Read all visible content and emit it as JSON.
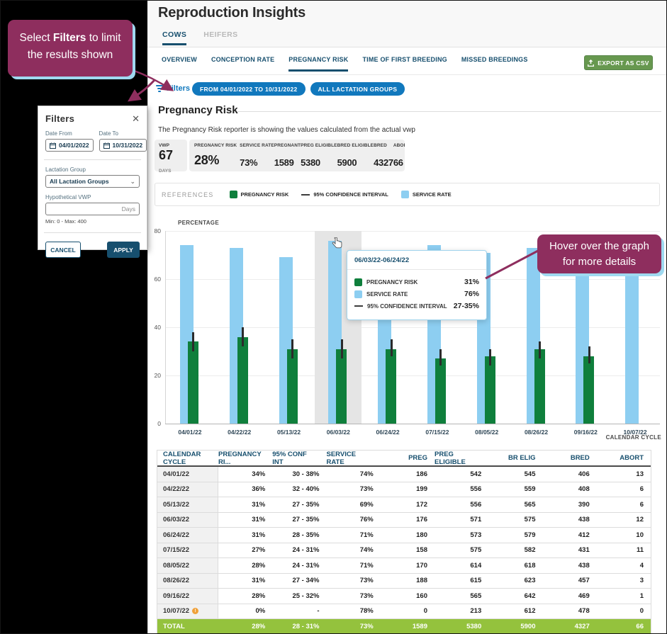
{
  "header": {
    "title": "Reproduction Insights",
    "tabs": [
      {
        "label": "COWS",
        "active": true
      },
      {
        "label": "HEIFERS",
        "active": false
      }
    ]
  },
  "subnav": {
    "tabs": [
      {
        "label": "OVERVIEW",
        "active": false
      },
      {
        "label": "CONCEPTION RATE",
        "active": false
      },
      {
        "label": "PREGNANCY RISK",
        "active": true
      },
      {
        "label": "TIME OF FIRST BREEDING",
        "active": false
      },
      {
        "label": "MISSED BREEDINGS",
        "active": false
      }
    ],
    "export_label": "EXPORT AS CSV"
  },
  "filters_bar": {
    "label": "Filters",
    "chips": [
      "FROM 04/01/2022 TO 10/31/2022",
      "ALL LACTATION GROUPS"
    ]
  },
  "section": {
    "title": "Pregnancy Risk",
    "subtitle": "The Pregnancy Risk reporter is showing the values calculated from the actual vwp"
  },
  "stats": {
    "vwp": {
      "label": "VWP",
      "value": "67",
      "unit": "DAYS"
    },
    "items": [
      {
        "label": "PREGNANCY RISK",
        "value": "28%",
        "big": true,
        "divider_after": true
      },
      {
        "label": "SERVICE RATE",
        "value": "73%"
      },
      {
        "label": "PREGNANT",
        "value": "1589"
      },
      {
        "label": "PREG ELIGIBLE",
        "value": "5380"
      },
      {
        "label": "BRED ELIGIBLE",
        "value": "5900"
      },
      {
        "label": "BRED",
        "value": "4327"
      },
      {
        "label": "ABORT",
        "value": "66"
      }
    ]
  },
  "references": {
    "label": "REFERENCES",
    "items": [
      {
        "swatch": "square",
        "color": "#0f7f3c",
        "label": "PREGNANCY RISK"
      },
      {
        "swatch": "line",
        "color": "#3c3c3c",
        "label": "95% CONFIDENCE INTERVAL"
      },
      {
        "swatch": "square",
        "color": "#8dcef1",
        "label": "SERVICE RATE"
      }
    ]
  },
  "chart_data": {
    "type": "bar",
    "ylabel": "PERCENTAGE",
    "xlabel": "CALENDAR CYCLE",
    "categories": [
      "04/01/22",
      "04/22/22",
      "05/13/22",
      "06/03/22",
      "06/24/22",
      "07/15/22",
      "08/05/22",
      "08/26/22",
      "09/16/22",
      "10/07/22"
    ],
    "series": [
      {
        "name": "SERVICE RATE",
        "color": "#8dcef1",
        "values": [
          74,
          73,
          69,
          76,
          71,
          74,
          71,
          73,
          73,
          78
        ]
      },
      {
        "name": "PREGNANCY RISK",
        "color": "#0f7f3c",
        "values": [
          34,
          36,
          31,
          31,
          31,
          27,
          28,
          31,
          28,
          0
        ]
      }
    ],
    "error_bars": {
      "name": "95% CONFIDENCE INTERVAL",
      "color": "#2b2b2b",
      "low": [
        30,
        32,
        27,
        27,
        28,
        24,
        24,
        27,
        25,
        null
      ],
      "high": [
        38,
        40,
        35,
        35,
        35,
        31,
        31,
        34,
        32,
        null
      ]
    },
    "ylim": [
      0,
      80
    ],
    "yticks": [
      0,
      20,
      40,
      60,
      80
    ],
    "highlight_index": 3,
    "highlight_color": "#e5e5e5",
    "grid": true,
    "legend_position": "top"
  },
  "tooltip": {
    "title": "06/03/22-06/24/22",
    "rows": [
      {
        "swatch": "square",
        "color": "#0f7f3c",
        "label": "PREGNANCY RISK",
        "value": "31%"
      },
      {
        "swatch": "square",
        "color": "#8dcef1",
        "label": "SERVICE RATE",
        "value": "76%"
      },
      {
        "swatch": "line",
        "color": "#3c3c3c",
        "label": "95% CONFIDENCE INTERVAL",
        "value": "27-35%"
      }
    ]
  },
  "callouts": {
    "filters": {
      "line1_pre": "Select ",
      "line1_bold": "Filters",
      "line1_post": " to limit",
      "line2": "the results shown"
    },
    "hover": {
      "line1": "Hover over the graph",
      "line2": "for more details"
    }
  },
  "filters_dialog": {
    "title": "Filters",
    "date_from": {
      "label": "Date From",
      "value": "04/01/2022"
    },
    "date_to": {
      "label": "Date To",
      "value": "10/31/2022"
    },
    "lactation": {
      "label": "Lactation Group",
      "value": "All Lactation Groups"
    },
    "vwp": {
      "label": "Hypothetical VWP",
      "placeholder": "Days",
      "hint": "Min: 0 - Max: 400"
    },
    "cancel_label": "CANCEL",
    "apply_label": "APPLY"
  },
  "table": {
    "columns": [
      "CALENDAR CYCLE",
      "PREGNANCY RI...",
      "95% CONF INT",
      "SERVICE RATE",
      "PREG",
      "PREG ELIGIBLE",
      "BR ELIG",
      "BRED",
      "ABORT"
    ],
    "rows": [
      [
        "04/01/22",
        "34%",
        "30 - 38%",
        "74%",
        "186",
        "542",
        "545",
        "406",
        "13"
      ],
      [
        "04/22/22",
        "36%",
        "32 - 40%",
        "73%",
        "199",
        "556",
        "559",
        "408",
        "6"
      ],
      [
        "05/13/22",
        "31%",
        "27 - 35%",
        "69%",
        "172",
        "556",
        "565",
        "390",
        "6"
      ],
      [
        "06/03/22",
        "31%",
        "27 - 35%",
        "76%",
        "176",
        "571",
        "575",
        "438",
        "12"
      ],
      [
        "06/24/22",
        "31%",
        "28 - 35%",
        "71%",
        "180",
        "573",
        "579",
        "412",
        "10"
      ],
      [
        "07/15/22",
        "27%",
        "24 - 31%",
        "74%",
        "158",
        "575",
        "582",
        "431",
        "11"
      ],
      [
        "08/05/22",
        "28%",
        "24 - 31%",
        "71%",
        "170",
        "614",
        "618",
        "438",
        "4"
      ],
      [
        "08/26/22",
        "31%",
        "27 - 34%",
        "73%",
        "188",
        "615",
        "623",
        "457",
        "3"
      ],
      [
        "09/16/22",
        "28%",
        "25 - 32%",
        "73%",
        "160",
        "565",
        "642",
        "469",
        "1"
      ],
      [
        "10/07/22",
        "0%",
        "-",
        "78%",
        "0",
        "213",
        "612",
        "478",
        "0"
      ]
    ],
    "warn_row_index": 9,
    "warn_glyph": "!",
    "total": [
      "TOTAL",
      "28%",
      "28 - 31%",
      "73%",
      "1589",
      "5380",
      "5900",
      "4327",
      "66"
    ],
    "total_color": "#94c23d"
  },
  "colors": {
    "navy": "#174f6e",
    "link_blue": "#1178bd",
    "export_green": "#67984f",
    "maroon": "#8e2e5e",
    "cyan_accent": "#9fd9f0",
    "bar_green": "#0f7f3c",
    "bar_blue": "#8dcef1",
    "total_green": "#94c23d",
    "warn_orange": "#f0a13a"
  }
}
